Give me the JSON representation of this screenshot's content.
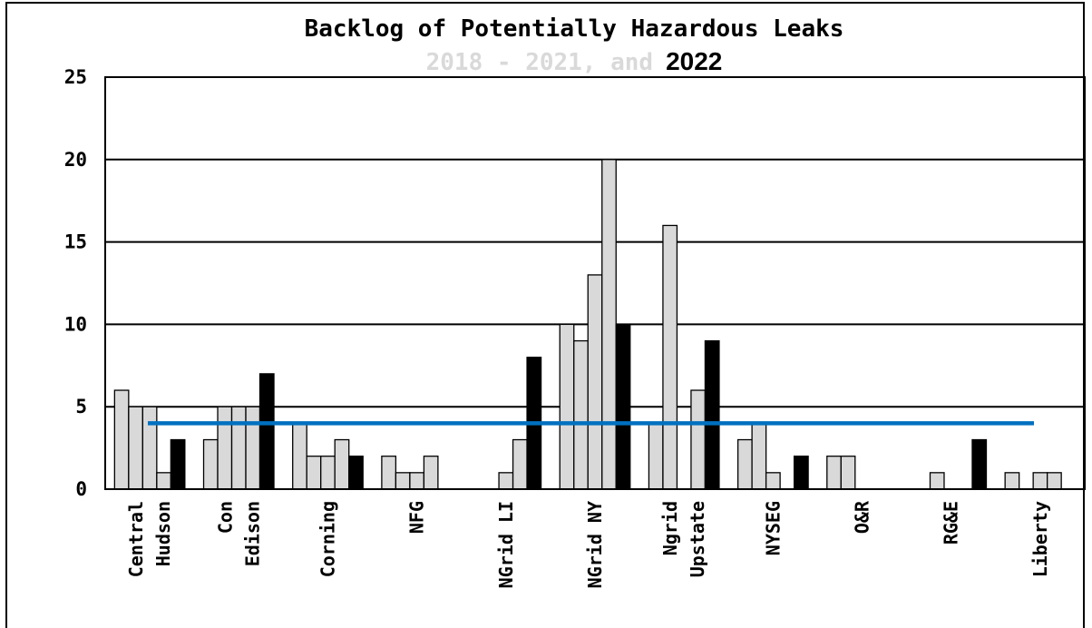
{
  "chart_data": {
    "type": "bar",
    "title": "Backlog of Potentially Hazardous Leaks",
    "subtitle_gray": "2018 - 2021, and",
    "subtitle_black": "2022",
    "categories": [
      [
        "Central",
        "Hudson"
      ],
      [
        "Con",
        "Edison"
      ],
      [
        "Corning"
      ],
      [
        "NFG"
      ],
      [
        "NGrid LI"
      ],
      [
        "NGrid NY"
      ],
      [
        "Ngrid",
        "Upstate"
      ],
      [
        "NYSEG"
      ],
      [
        "O&R"
      ],
      [
        "RG&E"
      ],
      [
        "Liberty"
      ]
    ],
    "series": [
      {
        "values": [
          6,
          3,
          4,
          2,
          0,
          10,
          4,
          3,
          2,
          0,
          1
        ]
      },
      {
        "values": [
          5,
          5,
          2,
          1,
          0,
          9,
          16,
          4,
          2,
          1,
          0
        ]
      },
      {
        "values": [
          5,
          5,
          2,
          1,
          1,
          13,
          0,
          1,
          0,
          0,
          1
        ]
      },
      {
        "values": [
          1,
          5,
          3,
          2,
          3,
          20,
          6,
          0,
          0,
          0,
          1
        ]
      },
      {
        "values": [
          3,
          7,
          2,
          0,
          8,
          10,
          9,
          2,
          0,
          3,
          0
        ]
      }
    ],
    "series_colors": [
      "#d9d9d9",
      "#d9d9d9",
      "#d9d9d9",
      "#d9d9d9",
      "#000000"
    ],
    "reference_line": {
      "value": 4,
      "color": "#0070c0"
    },
    "yticks": [
      "0",
      "5",
      "10",
      "15",
      "20",
      "25"
    ],
    "ylim": [
      0,
      25
    ],
    "grid": true
  }
}
